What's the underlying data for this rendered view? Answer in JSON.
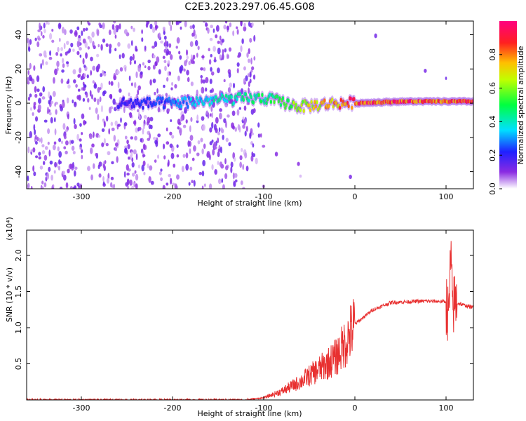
{
  "title": "C2E3.2023.297.06.45.G08",
  "chart_data": [
    {
      "type": "heatmap",
      "xlabel": "Height of straight line (km)",
      "ylabel": "Frequency (Hz)",
      "xlim": [
        -360,
        130
      ],
      "ylim": [
        -50,
        48
      ],
      "xticks": [
        -300,
        -200,
        -100,
        0,
        100
      ],
      "yticks": [
        -40,
        -20,
        0,
        20,
        40
      ],
      "colorbar": {
        "label": "Normalized spectral amplitude",
        "range": [
          0.0,
          1.0
        ],
        "ticks": [
          "0.0",
          "0.2",
          "0.4",
          "0.6",
          "0.8"
        ],
        "colormap": "rainbow (white-purple-blue-cyan-green-yellow-red-magenta)"
      },
      "ridge": {
        "description": "dominant spectral line near 0 Hz, amplitude increasing with height",
        "points": [
          {
            "x": -260,
            "f": 0,
            "amp": 0.2
          },
          {
            "x": -200,
            "f": 0,
            "amp": 0.3
          },
          {
            "x": -150,
            "f": 2,
            "amp": 0.45
          },
          {
            "x": -100,
            "f": 3,
            "amp": 0.5
          },
          {
            "x": -60,
            "f": -2,
            "amp": 0.65
          },
          {
            "x": -20,
            "f": 0,
            "amp": 0.85
          },
          {
            "x": 0,
            "f": 0,
            "amp": 0.95
          },
          {
            "x": 50,
            "f": 1,
            "amp": 0.95
          },
          {
            "x": 100,
            "f": 1,
            "amp": 0.95
          },
          {
            "x": 130,
            "f": 1,
            "amp": 0.95
          }
        ]
      }
    },
    {
      "type": "line",
      "xlabel": "Height of straight line (km)",
      "ylabel": "SNR (10 * v/v)",
      "yscale_label": "(x10⁴)",
      "xlim": [
        -360,
        130
      ],
      "ylim": [
        0,
        23500
      ],
      "xticks": [
        -300,
        -200,
        -100,
        0,
        100
      ],
      "yticks": [
        5000,
        10000,
        15000,
        20000
      ],
      "ytick_labels": [
        "0.5",
        "1.0",
        "1.5",
        "2.0"
      ],
      "series": [
        {
          "color": "#e83030",
          "x": [
            -360,
            -300,
            -200,
            -120,
            -100,
            -80,
            -60,
            -40,
            -30,
            -20,
            -10,
            0,
            20,
            40,
            60,
            80,
            100,
            103,
            105,
            107,
            110,
            120,
            130
          ],
          "y": [
            0,
            0,
            0,
            0,
            300,
            1200,
            2500,
            4200,
            5000,
            6000,
            8000,
            10500,
            12500,
            13500,
            13600,
            13700,
            13600,
            11000,
            20000,
            13000,
            13500,
            13100,
            12800
          ]
        }
      ]
    }
  ]
}
